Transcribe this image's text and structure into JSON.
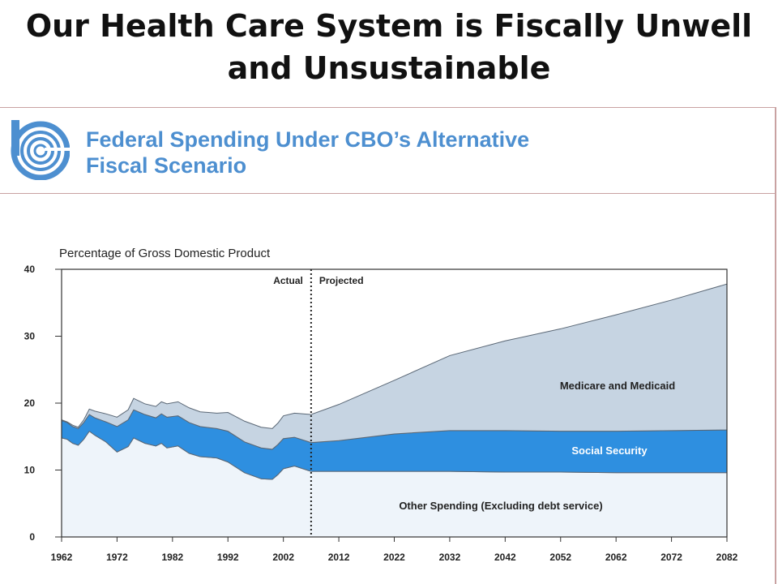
{
  "slide": {
    "title_line1": "Our Health Care System is Fiscally Unwell",
    "title_line2": "and Unsustainable"
  },
  "report": {
    "header_line1": "Federal Spending Under CBO’s Alternative",
    "header_line2": "Fiscal Scenario"
  },
  "colors": {
    "logo": "#4d8fd0",
    "header_text": "#4d8fd0",
    "medicare": "#c6d4e2",
    "social_security": "#2e8fe0",
    "other_spending": "#eef4fa",
    "axis": "#333333"
  },
  "chart_data": {
    "type": "area",
    "stacked": true,
    "ylabel": "Percentage of Gross Domestic Product",
    "ylim": [
      0,
      40
    ],
    "yticks": [
      0,
      10,
      20,
      30,
      40
    ],
    "xlim": [
      1962,
      2082
    ],
    "xticks": [
      1962,
      1972,
      1982,
      1992,
      2002,
      2012,
      2022,
      2032,
      2042,
      2052,
      2062,
      2072,
      2082
    ],
    "grid": false,
    "divider": {
      "x": 2007,
      "left_label": "Actual",
      "right_label": "Projected"
    },
    "x": [
      1962,
      1963,
      1964,
      1965,
      1966,
      1967,
      1968,
      1970,
      1972,
      1974,
      1975,
      1977,
      1979,
      1980,
      1981,
      1983,
      1985,
      1987,
      1990,
      1992,
      1995,
      1998,
      2000,
      2001,
      2002,
      2004,
      2007,
      2012,
      2022,
      2032,
      2042,
      2052,
      2062,
      2072,
      2082
    ],
    "series": [
      {
        "name": "Other Spending (Excluding debt service)",
        "values": [
          14.8,
          14.6,
          14.0,
          13.7,
          14.6,
          15.8,
          15.2,
          14.2,
          12.7,
          13.5,
          14.8,
          14.0,
          13.6,
          14.0,
          13.3,
          13.6,
          12.5,
          12.0,
          11.8,
          11.2,
          9.6,
          8.7,
          8.6,
          9.3,
          10.2,
          10.6,
          9.8,
          9.8,
          9.8,
          9.8,
          9.7,
          9.7,
          9.6,
          9.6,
          9.6
        ]
      },
      {
        "name": "Social Security",
        "values": [
          2.6,
          2.5,
          2.5,
          2.5,
          2.5,
          2.5,
          2.6,
          3.0,
          3.8,
          4.0,
          4.2,
          4.3,
          4.2,
          4.4,
          4.6,
          4.5,
          4.6,
          4.5,
          4.4,
          4.6,
          4.6,
          4.6,
          4.5,
          4.5,
          4.5,
          4.3,
          4.3,
          4.6,
          5.6,
          6.1,
          6.2,
          6.1,
          6.2,
          6.3,
          6.4
        ]
      },
      {
        "name": "Medicare and Medicaid",
        "values": [
          0.1,
          0.1,
          0.2,
          0.2,
          0.4,
          0.8,
          1.0,
          1.2,
          1.4,
          1.5,
          1.7,
          1.6,
          1.7,
          1.8,
          2.0,
          2.1,
          2.2,
          2.2,
          2.3,
          2.8,
          3.1,
          3.1,
          3.1,
          3.2,
          3.4,
          3.6,
          4.2,
          5.4,
          8.0,
          11.2,
          13.4,
          15.3,
          17.4,
          19.5,
          21.8
        ]
      }
    ]
  }
}
